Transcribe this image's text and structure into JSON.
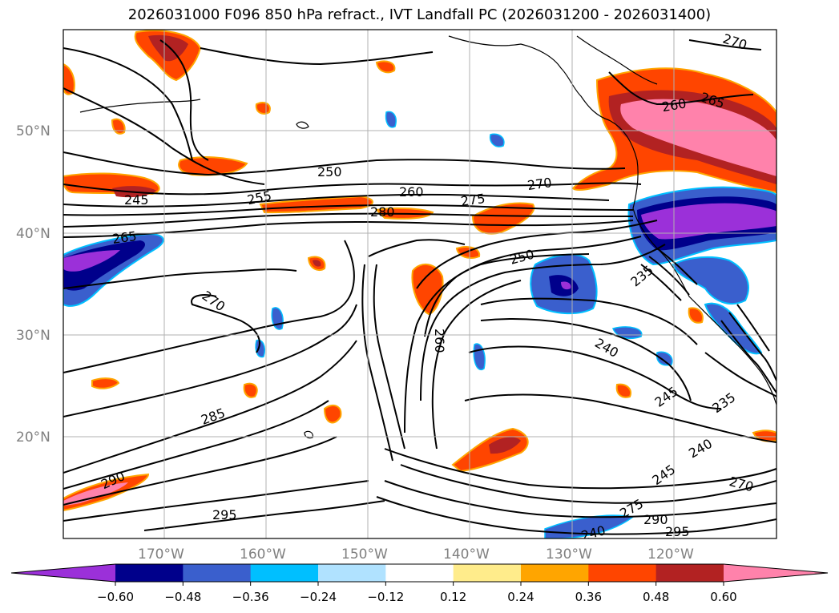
{
  "title": "2026031000 F096 850 hPa refract., IVT Landfall PC (2026031200 - 2026031400)",
  "map": {
    "lat_labels": [
      "50°N",
      "40°N",
      "30°N",
      "20°N"
    ],
    "lon_labels": [
      "170°W",
      "160°W",
      "150°W",
      "140°W",
      "130°W",
      "120°W"
    ],
    "contour_labels": [
      "270",
      "260",
      "265",
      "250",
      "255",
      "245",
      "260",
      "275",
      "270",
      "280",
      "265",
      "250",
      "235",
      "270",
      "260",
      "240",
      "245",
      "235",
      "285",
      "240",
      "245",
      "270",
      "290",
      "275",
      "290",
      "295",
      "295",
      "240"
    ],
    "colors": {
      "land_line": "#000000",
      "contour_line": "#000000",
      "grid": "#b0b0b0"
    }
  },
  "colorbar": {
    "colors": [
      "#9b30d9",
      "#00008b",
      "#3a5fcd",
      "#00bfff",
      "#b0e2ff",
      "#ffffff",
      "#ffec8b",
      "#ffa500",
      "#ff4500",
      "#b22222",
      "#ff82ab"
    ],
    "tick_labels": [
      "−0.60",
      "−0.48",
      "−0.36",
      "−0.24",
      "−0.12",
      "0.12",
      "0.24",
      "0.36",
      "0.48",
      "0.60"
    ]
  }
}
